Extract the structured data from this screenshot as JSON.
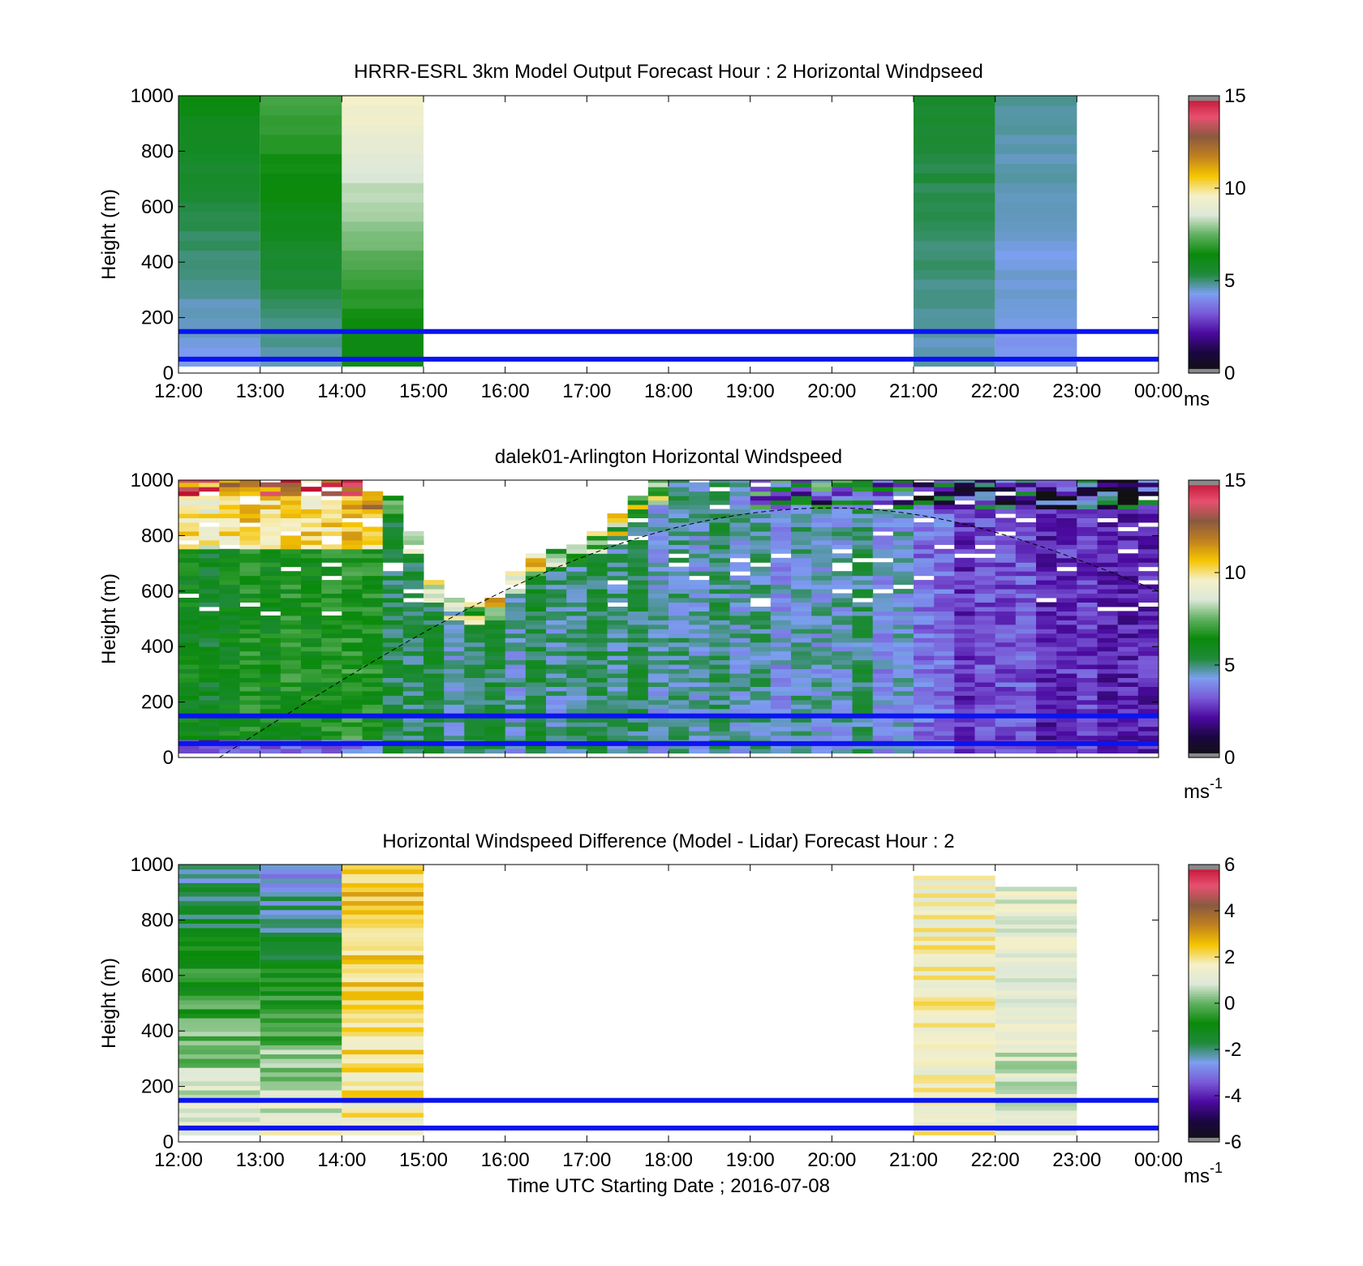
{
  "colors": {
    "band_line": "#0a14f0",
    "zero_line": "#000000",
    "cmap_stops": [
      "#111111",
      "#1a0640",
      "#4b0aa0",
      "#7a5ad8",
      "#7c9ef0",
      "#1f8a3a",
      "#0a8a0a",
      "#5fb05f",
      "#dde8d8",
      "#f5f0c8",
      "#f5c400",
      "#c08020",
      "#8a5a40",
      "#e85070",
      "#c01030"
    ]
  },
  "chart_data": [
    {
      "type": "heatmap",
      "title": "HRRR-ESRL 3km Model Output   Forecast Hour : 2 Horizontal Windpseed",
      "ylabel": "Height (m)",
      "xlabel": "",
      "x_ticks": [
        "12:00",
        "13:00",
        "14:00",
        "15:00",
        "16:00",
        "17:00",
        "18:00",
        "19:00",
        "20:00",
        "21:00",
        "22:00",
        "23:00",
        "00:00"
      ],
      "y_ticks": [
        "0",
        "200",
        "400",
        "600",
        "800",
        "1000"
      ],
      "ylim": [
        0,
        1000
      ],
      "x_range_hours": [
        12,
        24
      ],
      "colorbar": {
        "min": 0,
        "max": 15,
        "ticks": [
          "0",
          "5",
          "10",
          "15"
        ],
        "unit": "ms"
      },
      "reference_heights_m": [
        50,
        150
      ],
      "columns": [
        {
          "hour": 12,
          "low_value": 4.2,
          "high_value": 6.2
        },
        {
          "hour": 13,
          "low_value": 4.6,
          "high_value": 7.2
        },
        {
          "hour": 14,
          "low_value": 6.0,
          "high_value": 9.6
        },
        {
          "hour": 21,
          "low_value": 4.6,
          "high_value": 5.6
        },
        {
          "hour": 22,
          "low_value": 4.2,
          "high_value": 4.8
        }
      ],
      "grid": false
    },
    {
      "type": "heatmap",
      "title": "dalek01-Arlington  Horizontal Windspeed",
      "ylabel": "Height (m)",
      "xlabel": "",
      "x_ticks": [
        "",
        "",
        "",
        "",
        "",
        "",
        "",
        "",
        "",
        "",
        "",
        "",
        ""
      ],
      "y_ticks": [
        "0",
        "200",
        "400",
        "600",
        "800",
        "1000"
      ],
      "ylim": [
        0,
        1000
      ],
      "x_range_hours": [
        12,
        24
      ],
      "colorbar": {
        "min": 0,
        "max": 15,
        "ticks": [
          "0",
          "5",
          "10",
          "15"
        ],
        "unit": "ms",
        "unit_exp": "-1"
      },
      "reference_heights_m": [
        50,
        150
      ],
      "boundary_layer_curve": {
        "start_hour": 12.5,
        "peak_hour": 20.0,
        "peak_height_m": 900,
        "end_hour": 24,
        "end_height_m": 600
      },
      "data_top_by_hour": [
        [
          12,
          1000
        ],
        [
          14,
          1000
        ],
        [
          14.7,
          900
        ],
        [
          15.2,
          560
        ],
        [
          15.8,
          520
        ],
        [
          16.3,
          700
        ],
        [
          17,
          750
        ],
        [
          17.5,
          880
        ],
        [
          18,
          1000
        ],
        [
          24,
          1000
        ]
      ],
      "grid": false
    },
    {
      "type": "heatmap",
      "title": "Horizontal Windspeed Difference (Model - Lidar) Forecast Hour : 2",
      "ylabel": "Height (m)",
      "xlabel": "Time UTC  Starting Date ; 2016-07-08",
      "x_ticks": [
        "12:00",
        "13:00",
        "14:00",
        "15:00",
        "16:00",
        "17:00",
        "18:00",
        "19:00",
        "20:00",
        "21:00",
        "22:00",
        "23:00",
        "00:00"
      ],
      "y_ticks": [
        "0",
        "200",
        "400",
        "600",
        "800",
        "1000"
      ],
      "ylim": [
        0,
        1000
      ],
      "x_range_hours": [
        12,
        24
      ],
      "colorbar": {
        "min": -6,
        "max": 6,
        "ticks": [
          "-6",
          "-4",
          "-2",
          "0",
          "2",
          "4",
          "6"
        ],
        "unit": "ms",
        "unit_exp": "-1"
      },
      "reference_heights_m": [
        50,
        150
      ],
      "columns": [
        {
          "hour": 12,
          "low_value": 1.2,
          "high_value": -2.2
        },
        {
          "hour": 13,
          "low_value": 1.4,
          "high_value": -2.8
        },
        {
          "hour": 14,
          "low_value": 1.8,
          "high_value": 2.6
        },
        {
          "hour": 21,
          "low_value": 1.6,
          "high_value": 1.6,
          "top_m": 960
        },
        {
          "hour": 22,
          "low_value": 0.8,
          "high_value": 1.2,
          "top_m": 920
        }
      ],
      "grid": false
    }
  ]
}
